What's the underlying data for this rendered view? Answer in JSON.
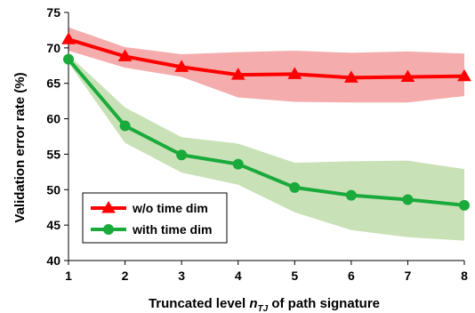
{
  "chart_data": {
    "type": "line",
    "title": "",
    "xlabel_parts": {
      "before": "Truncated level  ",
      "var": "n",
      "sub": "TJ",
      "after": " of path signature"
    },
    "ylabel": "Validation error rate (%)",
    "x": [
      1,
      2,
      3,
      4,
      5,
      6,
      7,
      8
    ],
    "xlim": [
      1,
      8
    ],
    "ylim": [
      40,
      75
    ],
    "yticks": [
      40,
      45,
      50,
      55,
      60,
      65,
      70,
      75
    ],
    "grid": false,
    "legend_position": "bottom-left",
    "series": [
      {
        "name": "w/o time dim",
        "color": "#ff0000",
        "band_color": "#f4a3a3",
        "marker": "triangle",
        "values": [
          71.2,
          68.8,
          67.3,
          66.2,
          66.3,
          65.8,
          65.9,
          66.0
        ],
        "upper": [
          72.9,
          70.1,
          69.1,
          69.4,
          69.6,
          69.3,
          69.5,
          69.2
        ],
        "lower": [
          69.6,
          67.2,
          65.9,
          63.0,
          62.4,
          62.3,
          62.3,
          63.2
        ]
      },
      {
        "name": "with time dim",
        "color": "#1aaa3c",
        "band_color": "#c3deae",
        "marker": "circle",
        "values": [
          68.4,
          59.0,
          54.9,
          53.6,
          50.3,
          49.2,
          48.6,
          47.8
        ],
        "upper": [
          69.0,
          61.6,
          57.4,
          56.5,
          53.8,
          54.0,
          54.1,
          52.9
        ],
        "lower": [
          67.9,
          56.6,
          52.4,
          50.7,
          46.8,
          44.3,
          43.3,
          42.8
        ]
      }
    ]
  }
}
